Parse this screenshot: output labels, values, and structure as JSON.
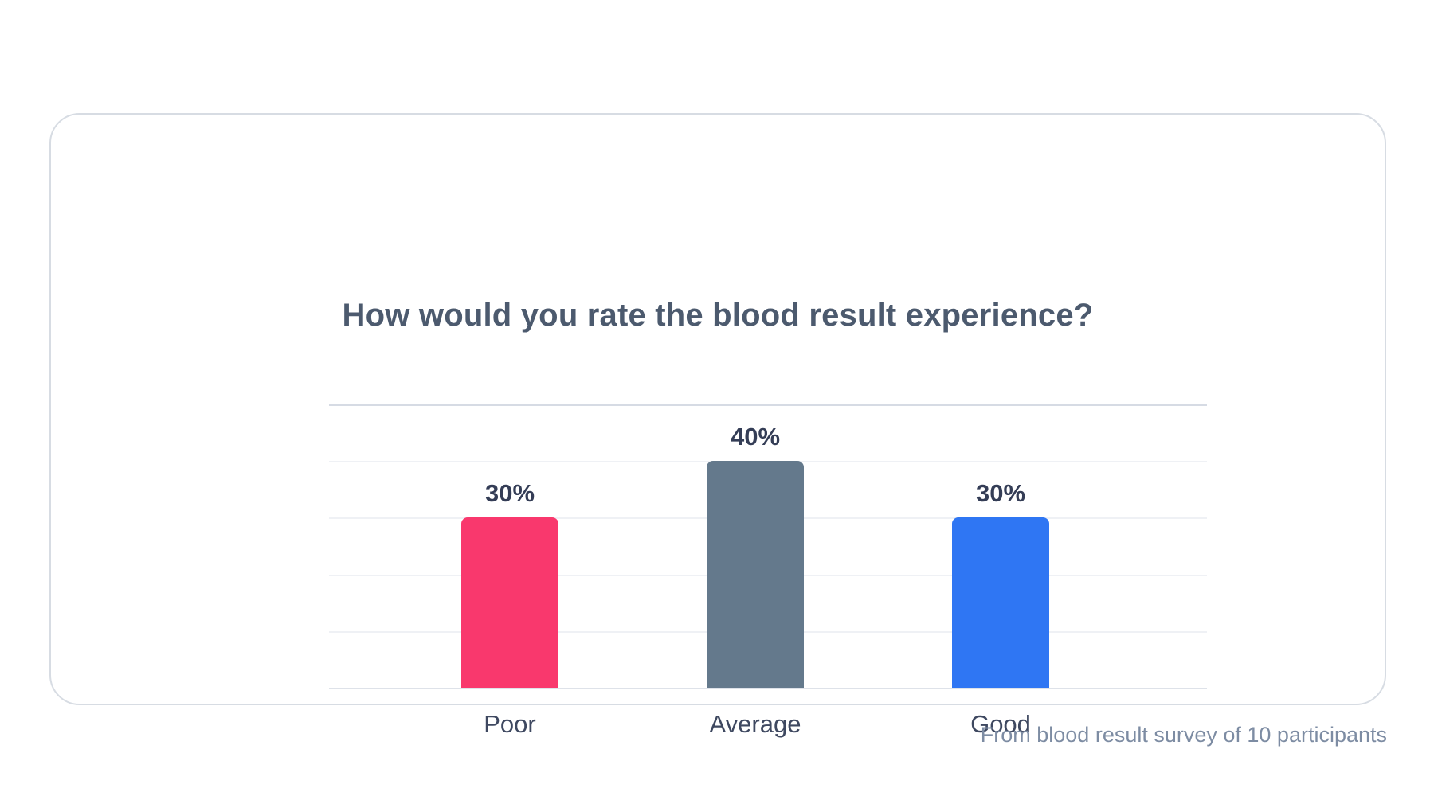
{
  "card": {
    "title": "How would you rate the blood result experience?"
  },
  "footer": {
    "text": "From blood result survey of 10 participants"
  },
  "chart_data": {
    "type": "bar",
    "title": "How would you rate the blood result experience?",
    "categories": [
      "Poor",
      "Average",
      "Good"
    ],
    "values": [
      30,
      40,
      30
    ],
    "value_labels": [
      "30%",
      "40%",
      "30%"
    ],
    "bar_colors": [
      "#F9386D",
      "#64798C",
      "#2F76F3"
    ],
    "unit": "%",
    "ylim": [
      0,
      50
    ],
    "grid_step": 10,
    "grid": "horizontal-only",
    "y_axis_tick_labels": "none",
    "legend": "none",
    "source_note": "From blood result survey of 10 participants"
  },
  "colors": {
    "card_border": "#d7dce3",
    "title_text": "#4c5a6e",
    "value_label_text": "#343d56",
    "category_label_text": "#3e4860",
    "footer_text": "#7d8ca3",
    "gridline_major": "#d6dbe4",
    "gridline_minor": "#eff1f5",
    "gridline_baseline": "#dee2e9",
    "background": "#ffffff"
  }
}
